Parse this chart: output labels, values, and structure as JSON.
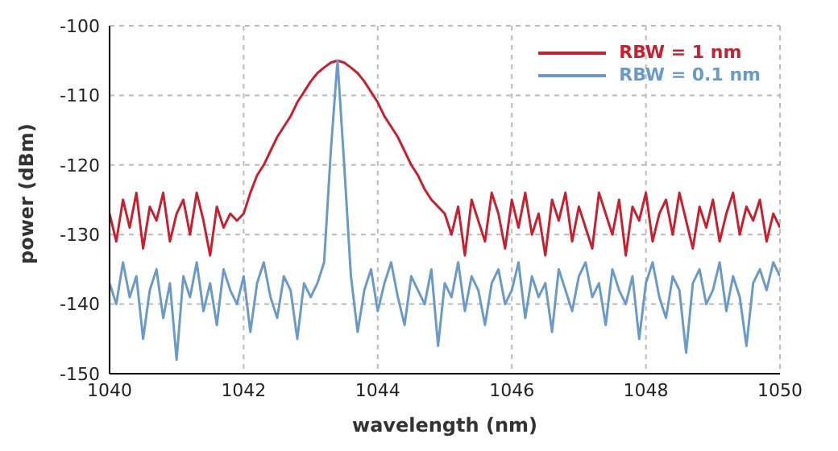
{
  "chart_data": {
    "type": "line",
    "xlabel": "wavelength (nm)",
    "ylabel": "power (dBm)",
    "x": [
      1040.0,
      1040.1,
      1040.2,
      1040.3,
      1040.4,
      1040.5,
      1040.6,
      1040.7,
      1040.8,
      1040.9,
      1041.0,
      1041.1,
      1041.2,
      1041.3,
      1041.4,
      1041.5,
      1041.6,
      1041.7,
      1041.8,
      1041.9,
      1042.0,
      1042.1,
      1042.2,
      1042.3,
      1042.4,
      1042.5,
      1042.6,
      1042.7,
      1042.8,
      1042.9,
      1043.0,
      1043.1,
      1043.2,
      1043.3,
      1043.4,
      1043.5,
      1043.6,
      1043.7,
      1043.8,
      1043.9,
      1044.0,
      1044.1,
      1044.2,
      1044.3,
      1044.4,
      1044.5,
      1044.6,
      1044.7,
      1044.8,
      1044.9,
      1045.0,
      1045.1,
      1045.2,
      1045.3,
      1045.4,
      1045.5,
      1045.6,
      1045.7,
      1045.8,
      1045.9,
      1046.0,
      1046.1,
      1046.2,
      1046.3,
      1046.4,
      1046.5,
      1046.6,
      1046.7,
      1046.8,
      1046.9,
      1047.0,
      1047.1,
      1047.2,
      1047.3,
      1047.4,
      1047.5,
      1047.6,
      1047.7,
      1047.8,
      1047.9,
      1048.0,
      1048.1,
      1048.2,
      1048.3,
      1048.4,
      1048.5,
      1048.6,
      1048.7,
      1048.8,
      1048.9,
      1049.0,
      1049.1,
      1049.2,
      1049.3,
      1049.4,
      1049.5,
      1049.6,
      1049.7,
      1049.8,
      1049.9,
      1050.0
    ],
    "series": [
      {
        "name": "RBW = 1 nm",
        "color": "#c8202f",
        "values": [
          -127,
          -131,
          -125,
          -129,
          -124,
          -132,
          -126,
          -128,
          -124,
          -131,
          -127,
          -125,
          -130,
          -124,
          -128,
          -133,
          -126,
          -129,
          -127,
          -128,
          -127,
          -124,
          -121.5,
          -120,
          -118,
          -116,
          -114.5,
          -113,
          -111,
          -109.5,
          -108,
          -106.8,
          -106,
          -105.3,
          -105,
          -105.3,
          -106,
          -106.8,
          -108,
          -109.5,
          -111,
          -113,
          -114.5,
          -116,
          -118,
          -120,
          -121.5,
          -123.5,
          -125,
          -126,
          -127,
          -130,
          -126,
          -133,
          -125,
          -128,
          -131,
          -124,
          -127,
          -132,
          -125,
          -129,
          -124,
          -130,
          -127,
          -133,
          -125,
          -128,
          -124,
          -131,
          -126,
          -129,
          -132,
          -124,
          -127,
          -130,
          -125,
          -133,
          -126,
          -128,
          -124,
          -131,
          -127,
          -125,
          -130,
          -124,
          -128,
          -132,
          -126,
          -129,
          -125,
          -131,
          -127,
          -124,
          -130,
          -126,
          -128,
          -125,
          -131,
          -127,
          -129
        ]
      },
      {
        "name": "RBW = 0.1 nm",
        "color": "#6a9bc8",
        "values": [
          -137,
          -140,
          -134,
          -139,
          -136,
          -145,
          -138,
          -135,
          -142,
          -137,
          -148,
          -136,
          -139,
          -134,
          -141,
          -137,
          -143,
          -135,
          -138,
          -140,
          -136,
          -144,
          -137,
          -134,
          -139,
          -142,
          -136,
          -138,
          -145,
          -137,
          -139,
          -137,
          -134,
          -118,
          -105,
          -120,
          -136,
          -144,
          -138,
          -135,
          -141,
          -137,
          -134,
          -139,
          -143,
          -136,
          -138,
          -140,
          -135,
          -146,
          -137,
          -139,
          -134,
          -141,
          -136,
          -138,
          -143,
          -137,
          -135,
          -140,
          -138,
          -134,
          -142,
          -136,
          -139,
          -137,
          -144,
          -135,
          -138,
          -141,
          -136,
          -134,
          -139,
          -137,
          -143,
          -135,
          -138,
          -140,
          -136,
          -145,
          -137,
          -134,
          -139,
          -142,
          -136,
          -138,
          -147,
          -137,
          -135,
          -140,
          -138,
          -134,
          -141,
          -136,
          -139,
          -146,
          -137,
          -135,
          -138,
          -134,
          -136
        ]
      }
    ],
    "xlim": [
      1040,
      1050
    ],
    "xticks": [
      1040,
      1042,
      1044,
      1046,
      1048,
      1050
    ],
    "ylim": [
      -150,
      -100
    ],
    "yticks": [
      -150,
      -140,
      -130,
      -120,
      -110,
      -100
    ],
    "grid": true,
    "legend": "top right",
    "marker": "none",
    "line_style": "solid"
  }
}
